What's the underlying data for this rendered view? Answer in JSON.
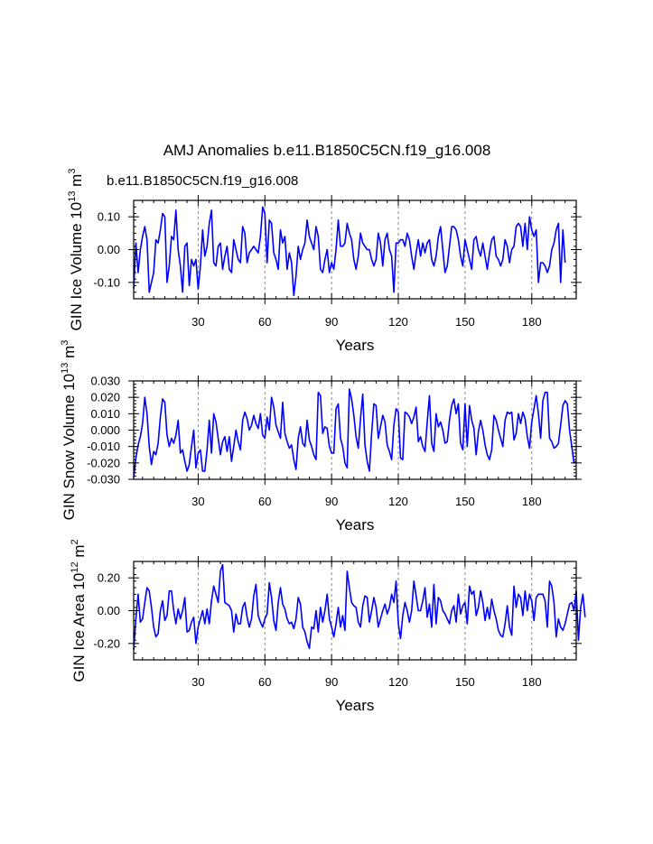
{
  "page": {
    "title": "AMJ Anomalies b.e11.B1850C5CN.f19_g16.008",
    "legend": "b.e11.B1850C5CN.f19_g16.008",
    "series_color": "#0000ff",
    "grid_color": "#888888"
  },
  "chart_data": [
    {
      "type": "line",
      "name": "ice-volume",
      "xlabel": "Years",
      "ylabel": {
        "main": "GIN Ice Volume 10",
        "exp": "13",
        "unit": "m",
        "unit_exp": "3"
      },
      "xlim": [
        1,
        200
      ],
      "ylim": [
        -0.15,
        0.15
      ],
      "xticks": [
        30,
        60,
        90,
        120,
        150,
        180
      ],
      "xtick_labels": [
        "30",
        "60",
        "90",
        "120",
        "150",
        "180"
      ],
      "yticks": [
        -0.1,
        0.0,
        0.1
      ],
      "ytick_labels": [
        "-0.10",
        "0.00",
        "0.10"
      ],
      "ytick_minor": 0.02,
      "series": [
        {
          "name": "b.e11.B1850C5CN.f19_g16.008",
          "color": "#0000ff",
          "values": [
            -0.12,
            0.02,
            -0.07,
            0.0,
            0.04,
            0.07,
            0.03,
            -0.13,
            -0.1,
            -0.07,
            0.03,
            0.02,
            0.06,
            0.11,
            0.1,
            -0.1,
            -0.05,
            0.04,
            0.03,
            0.12,
            0.0,
            -0.05,
            -0.13,
            0.01,
            0.02,
            -0.11,
            -0.03,
            -0.05,
            -0.03,
            -0.12,
            -0.05,
            0.06,
            -0.02,
            0.01,
            0.08,
            0.12,
            -0.04,
            -0.05,
            0.01,
            0.02,
            -0.06,
            -0.02,
            0.01,
            -0.06,
            -0.07,
            0.03,
            0.0,
            -0.03,
            -0.04,
            0.07,
            0.05,
            -0.04,
            -0.01,
            0.0,
            0.01,
            0.0,
            -0.01,
            0.04,
            0.13,
            0.11,
            -0.04,
            0.09,
            0.08,
            -0.01,
            -0.03,
            -0.06,
            0.06,
            0.02,
            0.04,
            -0.06,
            -0.01,
            -0.04,
            -0.14,
            -0.08,
            0.01,
            -0.03,
            0.0,
            0.02,
            0.09,
            0.04,
            0.02,
            0.0,
            0.07,
            0.04,
            -0.06,
            -0.07,
            -0.03,
            0.0,
            -0.07,
            -0.04,
            -0.06,
            0.0,
            0.09,
            0.01,
            0.01,
            0.02,
            0.08,
            0.05,
            0.03,
            -0.03,
            -0.06,
            -0.02,
            0.05,
            0.02,
            0.01,
            0.0,
            0.0,
            -0.03,
            -0.05,
            -0.03,
            0.05,
            0.02,
            -0.05,
            0.03,
            0.05,
            0.0,
            -0.02,
            -0.13,
            0.02,
            0.02,
            0.03,
            0.03,
            0.01,
            0.05,
            0.03,
            -0.02,
            -0.06,
            -0.01,
            0.03,
            -0.02,
            0.02,
            -0.01,
            0.02,
            0.03,
            -0.03,
            -0.05,
            -0.02,
            0.04,
            0.07,
            0.0,
            -0.07,
            -0.05,
            0.01,
            0.07,
            0.07,
            0.06,
            0.03,
            -0.02,
            -0.05,
            0.03,
            0.0,
            -0.03,
            -0.06,
            0.03,
            0.04,
            0.0,
            -0.02,
            0.02,
            -0.02,
            -0.06,
            -0.01,
            0.03,
            0.04,
            -0.02,
            -0.03,
            -0.05,
            -0.03,
            0.03,
            0.01,
            -0.04,
            0.0,
            0.01,
            0.07,
            0.08,
            0.07,
            0.01,
            0.08,
            0.0,
            0.1,
            0.06,
            0.04,
            0.06,
            -0.1,
            -0.04,
            -0.04,
            -0.05,
            -0.07,
            -0.05,
            0.0,
            0.02,
            0.06,
            0.08,
            -0.1,
            0.06,
            -0.04
          ]
        }
      ]
    },
    {
      "type": "line",
      "name": "snow-volume",
      "xlabel": "Years",
      "ylabel": {
        "main": "GIN Snow Volume 10",
        "exp": "13",
        "unit": "m",
        "unit_exp": "3"
      },
      "xlim": [
        1,
        200
      ],
      "ylim": [
        -0.03,
        0.03
      ],
      "xticks": [
        30,
        60,
        90,
        120,
        150,
        180
      ],
      "xtick_labels": [
        "30",
        "60",
        "90",
        "120",
        "150",
        "180"
      ],
      "yticks": [
        -0.03,
        -0.02,
        -0.01,
        0.0,
        0.01,
        0.02,
        0.03
      ],
      "ytick_labels": [
        "-0.030",
        "-0.020",
        "-0.010",
        "0.000",
        "0.010",
        "0.020",
        "0.030"
      ],
      "ytick_minor": 0.002,
      "series": [
        {
          "name": "b.e11.B1850C5CN.f19_g16.008",
          "color": "#0000ff",
          "values": [
            -0.029,
            -0.017,
            -0.009,
            -0.004,
            0.004,
            0.02,
            0.01,
            -0.01,
            -0.021,
            -0.013,
            -0.015,
            -0.008,
            0.008,
            0.019,
            0.017,
            -0.003,
            -0.01,
            -0.005,
            -0.008,
            -0.003,
            0.006,
            -0.014,
            -0.012,
            -0.019,
            -0.025,
            -0.021,
            -0.01,
            0.0,
            -0.023,
            -0.014,
            -0.012,
            -0.025,
            -0.025,
            -0.012,
            0.006,
            -0.014,
            0.01,
            0.005,
            -0.005,
            -0.015,
            -0.007,
            -0.004,
            -0.013,
            -0.004,
            -0.019,
            -0.01,
            0.0,
            -0.007,
            -0.012,
            0.006,
            0.011,
            0.007,
            0.0,
            0.003,
            0.009,
            0.004,
            0.001,
            0.01,
            -0.003,
            -0.005,
            0.008,
            0.0,
            0.02,
            0.014,
            0.003,
            -0.001,
            -0.005,
            0.017,
            -0.002,
            -0.007,
            -0.011,
            -0.009,
            -0.018,
            -0.024,
            -0.005,
            0.002,
            -0.008,
            -0.01,
            0.006,
            -0.006,
            -0.01,
            -0.015,
            -0.018,
            0.023,
            0.021,
            -0.002,
            0.002,
            0.001,
            -0.01,
            -0.014,
            -0.014,
            0.013,
            0.016,
            -0.005,
            -0.01,
            -0.02,
            -0.023,
            0.025,
            0.019,
            0.009,
            -0.004,
            -0.011,
            0.007,
            0.022,
            -0.009,
            -0.019,
            -0.025,
            -0.002,
            0.016,
            0.015,
            -0.005,
            0.002,
            0.009,
            0.005,
            -0.009,
            -0.013,
            -0.018,
            0.003,
            0.013,
            0.011,
            -0.017,
            -0.018,
            0.011,
            0.01,
            0.008,
            0.004,
            0.008,
            0.014,
            -0.007,
            -0.004,
            -0.01,
            -0.013,
            0.005,
            0.021,
            -0.008,
            -0.013,
            0.01,
            0.002,
            0.005,
            0.0,
            -0.008,
            -0.007,
            0.006,
            0.015,
            0.019,
            0.01,
            0.016,
            -0.008,
            -0.012,
            0.016,
            -0.01,
            0.015,
            0.006,
            0.001,
            -0.015,
            -0.001,
            0.006,
            0.0,
            -0.009,
            -0.015,
            -0.018,
            -0.012,
            0.009,
            0.006,
            0.0,
            -0.005,
            -0.01,
            0.006,
            0.011,
            0.01,
            0.011,
            -0.006,
            -0.002,
            0.01,
            0.004,
            0.011,
            0.007,
            -0.004,
            -0.011,
            0.005,
            0.013,
            0.021,
            0.01,
            -0.005,
            0.018,
            0.023,
            0.023,
            -0.005,
            -0.007,
            -0.011,
            -0.01,
            -0.008,
            0.003,
            0.015,
            0.018,
            0.016,
            0.0,
            -0.01,
            -0.02,
            -0.019
          ]
        }
      ]
    },
    {
      "type": "line",
      "name": "ice-area",
      "xlabel": "Years",
      "ylabel": {
        "main": "GIN Ice Area 10",
        "exp": "12",
        "unit": "m",
        "unit_exp": "2"
      },
      "xlim": [
        1,
        200
      ],
      "ylim": [
        -0.3,
        0.3
      ],
      "xticks": [
        30,
        60,
        90,
        120,
        150,
        180
      ],
      "xtick_labels": [
        "30",
        "60",
        "90",
        "120",
        "150",
        "180"
      ],
      "yticks": [
        -0.2,
        0.0,
        0.2
      ],
      "ytick_labels": [
        "-0.20",
        "0.00",
        "0.20"
      ],
      "ytick_minor": 0.04,
      "series": [
        {
          "name": "b.e11.B1850C5CN.f19_g16.008",
          "color": "#0000ff",
          "values": [
            -0.24,
            -0.05,
            0.1,
            -0.07,
            -0.05,
            0.05,
            0.14,
            0.12,
            0.02,
            -0.1,
            -0.16,
            -0.14,
            0.0,
            0.06,
            -0.06,
            -0.03,
            0.12,
            0.12,
            0.0,
            -0.08,
            0.01,
            -0.05,
            0.0,
            0.08,
            -0.13,
            -0.12,
            -0.07,
            -0.04,
            -0.2,
            -0.1,
            -0.05,
            0.0,
            -0.08,
            0.01,
            -0.08,
            0.06,
            0.15,
            0.1,
            0.05,
            0.24,
            0.28,
            0.05,
            0.04,
            0.03,
            0.0,
            -0.13,
            -0.02,
            -0.08,
            -0.08,
            0.02,
            0.05,
            -0.04,
            -0.1,
            -0.05,
            0.09,
            0.16,
            -0.03,
            -0.07,
            -0.1,
            -0.05,
            -0.02,
            0.17,
            0.08,
            -0.06,
            -0.12,
            0.05,
            0.14,
            0.04,
            0.01,
            -0.05,
            -0.08,
            -0.07,
            -0.11,
            -0.05,
            0.08,
            0.04,
            -0.1,
            -0.13,
            -0.19,
            -0.23,
            -0.1,
            -0.11,
            0.0,
            -0.13,
            0.02,
            -0.07,
            0.0,
            0.1,
            -0.05,
            -0.1,
            -0.16,
            -0.08,
            0.02,
            -0.1,
            -0.03,
            -0.12,
            0.24,
            0.14,
            0.05,
            0.03,
            0.02,
            -0.07,
            -0.1,
            0.03,
            0.09,
            0.08,
            -0.07,
            0.0,
            0.08,
            0.02,
            -0.1,
            -0.05,
            0.0,
            0.04,
            -0.02,
            0.02,
            0.1,
            0.05,
            0.18,
            -0.08,
            -0.17,
            -0.03,
            0.05,
            0.0,
            -0.07,
            0.0,
            0.18,
            0.09,
            0.0,
            0.0,
            0.06,
            0.14,
            -0.04,
            0.04,
            -0.1,
            0.16,
            -0.08,
            0.08,
            0.06,
            0.0,
            -0.02,
            -0.05,
            -0.08,
            0.0,
            0.03,
            -0.07,
            0.1,
            -0.02,
            0.03,
            0.05,
            -0.08,
            0.15,
            0.1,
            0.12,
            -0.03,
            0.02,
            0.12,
            0.05,
            -0.06,
            0.02,
            -0.05,
            0.07,
            0.0,
            -0.05,
            -0.12,
            -0.15,
            -0.16,
            -0.08,
            0.03,
            -0.1,
            -0.15,
            0.15,
            0.02,
            0.1,
            0.08,
            -0.03,
            0.12,
            0.0,
            0.1,
            0.06,
            -0.06,
            0.08,
            0.1,
            0.1,
            0.1,
            0.06,
            -0.1,
            0.18,
            0.15,
            0.05,
            -0.16,
            -0.05,
            -0.1,
            -0.12,
            -0.08,
            -0.02,
            0.04,
            0.05,
            0.0,
            0.12,
            -0.18,
            0.02,
            0.1,
            -0.04
          ]
        }
      ]
    }
  ]
}
